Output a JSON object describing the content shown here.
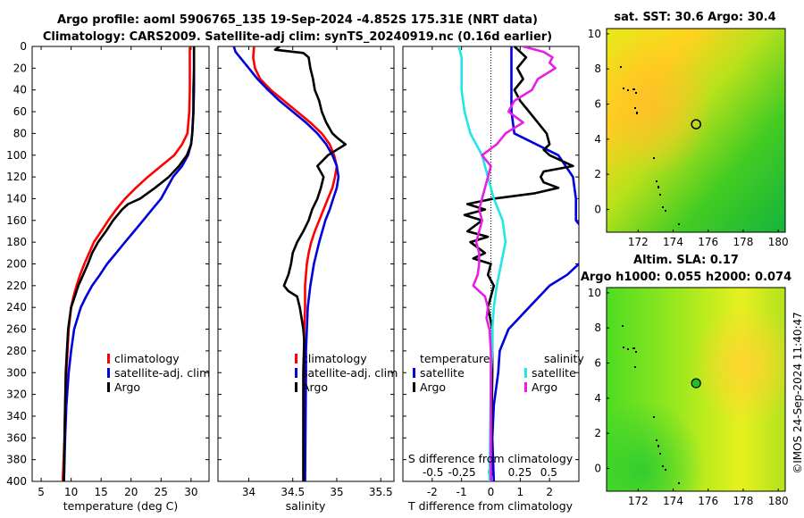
{
  "header": {
    "line1": "Argo profile: aoml 5906765_135 19-Sep-2024 -4.852S 175.31E (NRT data)",
    "line2": "Climatology: CARS2009. Satellite-adj clim: synTS_20240919.nc (0.16d earlier)"
  },
  "depth_ticks": [
    "0",
    "20",
    "40",
    "60",
    "80",
    "100",
    "120",
    "140",
    "160",
    "180",
    "200",
    "220",
    "240",
    "260",
    "280",
    "300",
    "320",
    "340",
    "360",
    "380",
    "400"
  ],
  "colors": {
    "red": "#ff0000",
    "blue": "#0000dd",
    "black": "#000000",
    "cyan": "#22e6e6",
    "magenta": "#e61ee6",
    "green": "#20d020"
  },
  "chart_data": [
    {
      "type": "line",
      "id": "temperature",
      "xlabel": "temperature (deg C)",
      "xlim": [
        3.5,
        33
      ],
      "ylim": [
        0,
        400
      ],
      "xticks": [
        "5",
        "10",
        "15",
        "20",
        "25",
        "30"
      ],
      "xtick_values": [
        5,
        10,
        15,
        20,
        25,
        30
      ],
      "series": [
        {
          "name": "climatology",
          "color": "#ff0000",
          "depth": [
            0,
            20,
            40,
            60,
            80,
            90,
            100,
            110,
            120,
            130,
            140,
            150,
            160,
            170,
            180,
            190,
            200,
            210,
            220,
            230,
            240,
            260,
            280,
            300,
            330,
            360,
            400
          ],
          "values": [
            29.8,
            29.8,
            29.8,
            29.7,
            29.4,
            28.5,
            27.2,
            25.0,
            22.8,
            20.8,
            19.0,
            17.5,
            16.2,
            15.0,
            13.8,
            13.0,
            12.2,
            11.5,
            10.9,
            10.4,
            10.0,
            9.6,
            9.4,
            9.2,
            9.0,
            8.9,
            8.6
          ]
        },
        {
          "name": "satellite-adj. clim",
          "color": "#0000dd",
          "depth": [
            0,
            20,
            40,
            60,
            80,
            90,
            100,
            110,
            120,
            130,
            140,
            150,
            160,
            170,
            180,
            190,
            200,
            210,
            220,
            230,
            240,
            260,
            280,
            300,
            330,
            360,
            400
          ],
          "values": [
            30.5,
            30.5,
            30.5,
            30.4,
            30.2,
            30.0,
            29.5,
            28.5,
            27.0,
            26.0,
            25.0,
            23.5,
            22.0,
            20.5,
            19.0,
            17.5,
            16.0,
            14.8,
            13.5,
            12.5,
            11.6,
            10.5,
            10.0,
            9.6,
            9.2,
            9.0,
            8.8
          ]
        },
        {
          "name": "Argo",
          "color": "#000000",
          "depth": [
            0,
            20,
            40,
            60,
            80,
            90,
            100,
            110,
            120,
            130,
            140,
            145,
            150,
            160,
            170,
            180,
            190,
            200,
            210,
            220,
            230,
            240,
            260,
            280,
            300,
            330,
            360,
            400
          ],
          "values": [
            30.5,
            30.5,
            30.4,
            30.4,
            30.2,
            30.0,
            29.3,
            28.0,
            26.3,
            24.0,
            21.5,
            19.5,
            18.5,
            17.0,
            15.8,
            14.5,
            13.5,
            12.8,
            12.0,
            11.2,
            10.6,
            10.0,
            9.5,
            9.3,
            9.1,
            9.0,
            8.9,
            8.8
          ]
        }
      ],
      "legend": [
        "climatology",
        "satellite-adj. clim",
        "Argo"
      ]
    },
    {
      "type": "line",
      "id": "salinity",
      "xlabel": "salinity",
      "xlim": [
        33.65,
        35.65
      ],
      "ylim": [
        0,
        400
      ],
      "xticks": [
        "34",
        "34.5",
        "35",
        "35.5"
      ],
      "xtick_values": [
        34,
        34.5,
        35,
        35.5
      ],
      "series": [
        {
          "name": "climatology",
          "color": "#ff0000",
          "depth": [
            0,
            10,
            20,
            30,
            40,
            50,
            60,
            70,
            80,
            90,
            100,
            110,
            120,
            130,
            140,
            150,
            160,
            170,
            180,
            190,
            200,
            210,
            220,
            240,
            260,
            300,
            400
          ],
          "values": [
            34.06,
            34.05,
            34.07,
            34.13,
            34.25,
            34.4,
            34.55,
            34.7,
            34.83,
            34.92,
            34.97,
            35.0,
            34.98,
            34.95,
            34.9,
            34.85,
            34.8,
            34.75,
            34.71,
            34.68,
            34.66,
            34.65,
            34.64,
            34.64,
            34.63,
            34.63,
            34.63
          ]
        },
        {
          "name": "satellite-adj. clim",
          "color": "#0000dd",
          "depth": [
            0,
            5,
            10,
            20,
            30,
            40,
            50,
            60,
            70,
            80,
            90,
            100,
            110,
            120,
            130,
            140,
            150,
            160,
            180,
            200,
            220,
            240,
            260,
            280,
            300,
            400
          ],
          "values": [
            33.83,
            33.85,
            33.9,
            34.0,
            34.1,
            34.22,
            34.35,
            34.5,
            34.65,
            34.78,
            34.88,
            34.95,
            35.0,
            35.02,
            35.0,
            34.96,
            34.92,
            34.87,
            34.8,
            34.74,
            34.7,
            34.67,
            34.66,
            34.65,
            34.65,
            34.64
          ]
        },
        {
          "name": "Argo",
          "color": "#000000",
          "depth": [
            0,
            3,
            6,
            10,
            20,
            30,
            40,
            50,
            60,
            70,
            80,
            85,
            90,
            95,
            100,
            110,
            120,
            130,
            140,
            150,
            160,
            170,
            180,
            190,
            200,
            210,
            220,
            225,
            230,
            240,
            250,
            260,
            270,
            300,
            400
          ],
          "values": [
            34.35,
            34.3,
            34.62,
            34.68,
            34.7,
            34.73,
            34.75,
            34.8,
            34.83,
            34.88,
            34.95,
            35.02,
            35.1,
            35.0,
            34.9,
            34.78,
            34.85,
            34.82,
            34.78,
            34.72,
            34.68,
            34.62,
            34.55,
            34.5,
            34.48,
            34.45,
            34.4,
            34.45,
            34.55,
            34.58,
            34.6,
            34.62,
            34.63,
            34.62,
            34.62
          ]
        }
      ],
      "legend": [
        "climatology",
        "satellite-adj. clim",
        "Argo"
      ]
    },
    {
      "type": "line",
      "id": "difference",
      "xlabel": "T difference from climatology",
      "xlabel_top": "S difference from climatology",
      "xlim": [
        -3,
        3
      ],
      "ylim": [
        0,
        400
      ],
      "xticks": [
        "-2",
        "-1",
        "0",
        "1",
        "2"
      ],
      "xtick_values": [
        -2,
        -1,
        0,
        1,
        2
      ],
      "top_ticks": [
        "-0.5",
        "-0.25",
        "0",
        "0.25",
        "0.5"
      ],
      "top_tick_values": [
        -1.975,
        -0.9875,
        0,
        0.9875,
        1.975
      ],
      "series": [
        {
          "name": "T satellite",
          "group": "temperature",
          "color": "#0000dd",
          "depth": [
            0,
            20,
            40,
            60,
            80,
            100,
            120,
            140,
            160,
            180,
            190,
            200,
            210,
            220,
            240,
            260,
            280,
            300,
            330,
            360,
            400
          ],
          "values": [
            0.7,
            0.7,
            0.7,
            0.7,
            0.8,
            2.3,
            2.8,
            2.9,
            2.9,
            3.5,
            3.3,
            3.0,
            2.6,
            2.0,
            1.3,
            0.6,
            0.3,
            0.25,
            0.1,
            0.05,
            0.1
          ]
        },
        {
          "name": "T Argo",
          "group": "temperature",
          "color": "#000000",
          "depth": [
            0,
            10,
            20,
            30,
            40,
            50,
            60,
            70,
            80,
            90,
            95,
            100,
            105,
            110,
            115,
            120,
            125,
            130,
            135,
            140,
            145,
            150,
            155,
            160,
            170,
            175,
            180,
            190,
            195,
            200,
            210,
            220,
            230,
            240,
            260,
            300,
            400
          ],
          "values": [
            0.8,
            1.2,
            0.9,
            1.1,
            0.8,
            1.0,
            1.3,
            1.6,
            1.9,
            2.0,
            1.8,
            2.0,
            2.4,
            2.8,
            1.8,
            1.7,
            1.8,
            2.3,
            1.5,
            0.1,
            -0.8,
            -0.2,
            -0.9,
            -0.3,
            -0.8,
            -0.1,
            -0.7,
            -0.2,
            -0.6,
            0.0,
            -0.1,
            0.1,
            0.0,
            -0.1,
            0.05,
            0.05,
            0.0
          ]
        },
        {
          "name": "S satellite",
          "group": "salinity",
          "color": "#22e6e6",
          "depth": [
            0,
            10,
            20,
            40,
            60,
            80,
            100,
            120,
            140,
            160,
            180,
            200,
            220,
            240,
            260,
            280,
            300,
            350,
            400
          ],
          "values": [
            -1.1,
            -1.0,
            -1.0,
            -1.0,
            -0.9,
            -0.7,
            -0.3,
            -0.1,
            0.1,
            0.4,
            0.5,
            0.35,
            0.2,
            0.1,
            0.05,
            0.05,
            0.0,
            -0.02,
            -0.05
          ]
        },
        {
          "name": "S Argo",
          "group": "salinity",
          "color": "#e61ee6",
          "depth": [
            0,
            5,
            10,
            15,
            20,
            30,
            40,
            50,
            60,
            70,
            80,
            90,
            100,
            110,
            120,
            130,
            140,
            150,
            160,
            170,
            180,
            190,
            200,
            210,
            220,
            230,
            240,
            250,
            260,
            280,
            300,
            350,
            400
          ],
          "values": [
            1.1,
            1.8,
            2.1,
            2.0,
            2.2,
            1.6,
            1.4,
            0.8,
            0.6,
            1.1,
            0.5,
            0.2,
            -0.3,
            0.0,
            -0.1,
            -0.2,
            -0.3,
            -0.4,
            -0.3,
            -0.4,
            -0.5,
            -0.4,
            -0.4,
            -0.45,
            -0.6,
            -0.2,
            -0.1,
            -0.15,
            -0.05,
            0.0,
            0.0,
            0.0,
            0.0
          ]
        }
      ],
      "legend_temperature": {
        "title": "temperature",
        "entries": [
          "satellite",
          "Argo"
        ]
      },
      "legend_salinity": {
        "title": "salinity",
        "entries": [
          "satellite",
          "Argo"
        ]
      }
    },
    {
      "type": "heatmap",
      "id": "sst_map",
      "title": "sat. SST: 30.6 Argo: 30.4",
      "xticks": [
        "172",
        "174",
        "176",
        "178",
        "180"
      ],
      "xtick_values": [
        172,
        174,
        176,
        178,
        180
      ],
      "yticks": [
        "0",
        "2",
        "4",
        "6",
        "8",
        "10"
      ],
      "ytick_values": [
        0,
        2,
        4,
        6,
        8,
        10
      ],
      "xlim": [
        170.2,
        180.4
      ],
      "ylim": [
        -1.3,
        10.3
      ],
      "float_position": [
        175.31,
        4.852
      ],
      "marker_filled": false
    },
    {
      "type": "heatmap",
      "id": "sla_map",
      "title_line1": "Altim. SLA: 0.17",
      "title_line2": "Argo h1000: 0.055 h2000: 0.074",
      "xticks": [
        "172",
        "174",
        "176",
        "178",
        "180"
      ],
      "xtick_values": [
        172,
        174,
        176,
        178,
        180
      ],
      "yticks": [
        "0",
        "2",
        "4",
        "6",
        "8",
        "10"
      ],
      "ytick_values": [
        0,
        2,
        4,
        6,
        8,
        10
      ],
      "xlim": [
        170.2,
        180.4
      ],
      "ylim": [
        -1.3,
        10.3
      ],
      "float_position": [
        175.31,
        4.852
      ],
      "marker_filled": true
    }
  ],
  "side_label": "©IMOS 24-Sep-2024 11:40:47"
}
